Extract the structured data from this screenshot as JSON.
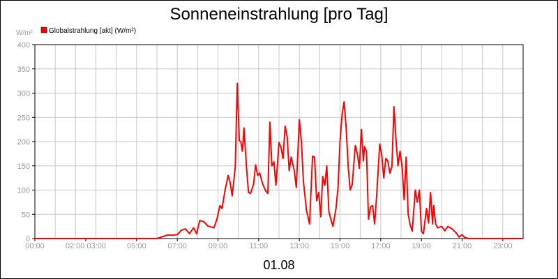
{
  "chart_data": {
    "type": "line",
    "title": "Sonneneinstrahlung [pro Tag]",
    "date_label": "01.08",
    "ylabel": "W/m²",
    "legend_position": "top-left",
    "grid": true,
    "ylim": [
      0,
      400
    ],
    "y_ticks": [
      "0",
      "50",
      "100",
      "150",
      "200",
      "250",
      "300",
      "350",
      "400"
    ],
    "x_ticks": [
      {
        "label": "00:00",
        "hour": 0
      },
      {
        "label": "02:00 03:00",
        "hour": 2.5
      },
      {
        "label": "05:00",
        "hour": 5
      },
      {
        "label": "07:00",
        "hour": 7
      },
      {
        "label": "09:00",
        "hour": 9
      },
      {
        "label": "11:00",
        "hour": 11
      },
      {
        "label": "13:00",
        "hour": 13
      },
      {
        "label": "15:00",
        "hour": 15
      },
      {
        "label": "17:00",
        "hour": 17
      },
      {
        "label": "19:00",
        "hour": 19
      },
      {
        "label": "21:00",
        "hour": 21
      },
      {
        "label": "23:00",
        "hour": 23
      }
    ],
    "xlim_hours": [
      0,
      24
    ],
    "series": [
      {
        "name": "Globalstrahlung [akt] (W/m²)",
        "color": "#ff0000",
        "points": [
          [
            0.0,
            0
          ],
          [
            6.0,
            0
          ],
          [
            6.3,
            4
          ],
          [
            6.5,
            7
          ],
          [
            6.8,
            7
          ],
          [
            7.0,
            8
          ],
          [
            7.2,
            17
          ],
          [
            7.4,
            20
          ],
          [
            7.6,
            10
          ],
          [
            7.8,
            22
          ],
          [
            7.95,
            10
          ],
          [
            8.1,
            37
          ],
          [
            8.3,
            35
          ],
          [
            8.5,
            26
          ],
          [
            8.8,
            22
          ],
          [
            8.95,
            40
          ],
          [
            9.1,
            68
          ],
          [
            9.2,
            62
          ],
          [
            9.35,
            100
          ],
          [
            9.5,
            130
          ],
          [
            9.6,
            115
          ],
          [
            9.7,
            88
          ],
          [
            9.85,
            148
          ],
          [
            9.95,
            320
          ],
          [
            10.05,
            202
          ],
          [
            10.12,
            200
          ],
          [
            10.2,
            180
          ],
          [
            10.28,
            228
          ],
          [
            10.4,
            148
          ],
          [
            10.5,
            95
          ],
          [
            10.6,
            93
          ],
          [
            10.75,
            112
          ],
          [
            10.85,
            152
          ],
          [
            10.95,
            130
          ],
          [
            11.05,
            135
          ],
          [
            11.2,
            112
          ],
          [
            11.35,
            98
          ],
          [
            11.45,
            93
          ],
          [
            11.55,
            240
          ],
          [
            11.65,
            150
          ],
          [
            11.75,
            158
          ],
          [
            11.85,
            110
          ],
          [
            12.0,
            198
          ],
          [
            12.1,
            188
          ],
          [
            12.2,
            165
          ],
          [
            12.3,
            232
          ],
          [
            12.4,
            210
          ],
          [
            12.5,
            140
          ],
          [
            12.6,
            168
          ],
          [
            12.75,
            140
          ],
          [
            12.85,
            105
          ],
          [
            13.0,
            245
          ],
          [
            13.1,
            200
          ],
          [
            13.2,
            118
          ],
          [
            13.35,
            58
          ],
          [
            13.5,
            30
          ],
          [
            13.65,
            170
          ],
          [
            13.75,
            168
          ],
          [
            13.85,
            78
          ],
          [
            13.95,
            95
          ],
          [
            14.05,
            45
          ],
          [
            14.15,
            128
          ],
          [
            14.25,
            110
          ],
          [
            14.35,
            150
          ],
          [
            14.45,
            55
          ],
          [
            14.55,
            40
          ],
          [
            14.65,
            25
          ],
          [
            14.8,
            62
          ],
          [
            14.9,
            105
          ],
          [
            15.0,
            200
          ],
          [
            15.1,
            255
          ],
          [
            15.2,
            282
          ],
          [
            15.3,
            228
          ],
          [
            15.4,
            148
          ],
          [
            15.5,
            100
          ],
          [
            15.6,
            112
          ],
          [
            15.75,
            192
          ],
          [
            15.85,
            175
          ],
          [
            15.95,
            145
          ],
          [
            16.05,
            225
          ],
          [
            16.15,
            160
          ],
          [
            16.2,
            190
          ],
          [
            16.3,
            180
          ],
          [
            16.4,
            40
          ],
          [
            16.5,
            65
          ],
          [
            16.6,
            68
          ],
          [
            16.7,
            30
          ],
          [
            16.8,
            88
          ],
          [
            16.95,
            195
          ],
          [
            17.05,
            172
          ],
          [
            17.15,
            125
          ],
          [
            17.25,
            165
          ],
          [
            17.35,
            160
          ],
          [
            17.45,
            135
          ],
          [
            17.55,
            148
          ],
          [
            17.65,
            272
          ],
          [
            17.75,
            205
          ],
          [
            17.85,
            150
          ],
          [
            17.95,
            180
          ],
          [
            18.05,
            148
          ],
          [
            18.15,
            80
          ],
          [
            18.25,
            168
          ],
          [
            18.35,
            50
          ],
          [
            18.45,
            28
          ],
          [
            18.55,
            15
          ],
          [
            18.7,
            100
          ],
          [
            18.8,
            75
          ],
          [
            18.9,
            100
          ],
          [
            19.0,
            15
          ],
          [
            19.1,
            10
          ],
          [
            19.25,
            62
          ],
          [
            19.35,
            32
          ],
          [
            19.45,
            95
          ],
          [
            19.55,
            30
          ],
          [
            19.6,
            68
          ],
          [
            19.7,
            30
          ],
          [
            19.8,
            22
          ],
          [
            20.0,
            25
          ],
          [
            20.15,
            16
          ],
          [
            20.3,
            25
          ],
          [
            20.5,
            20
          ],
          [
            20.7,
            12
          ],
          [
            20.85,
            3
          ],
          [
            21.0,
            8
          ],
          [
            21.1,
            3
          ],
          [
            21.3,
            0
          ],
          [
            24.0,
            0
          ]
        ]
      }
    ]
  }
}
